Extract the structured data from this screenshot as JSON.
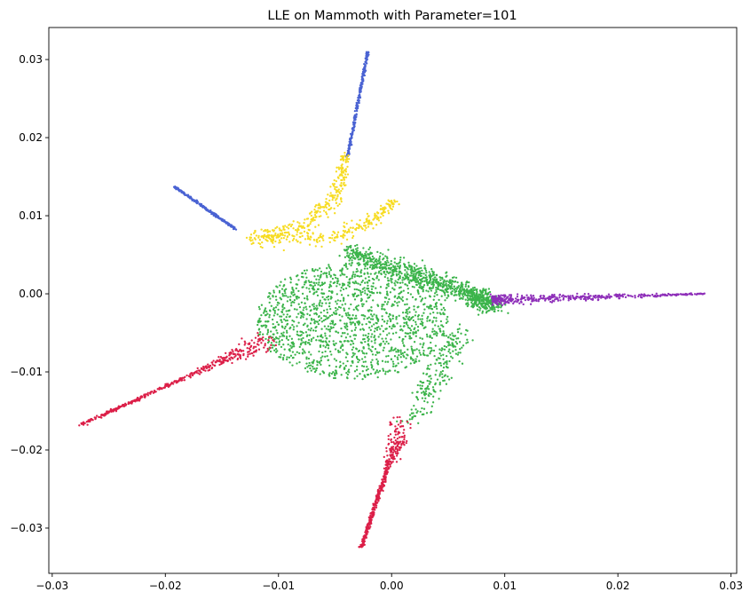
{
  "chart_data": {
    "type": "scatter",
    "title": "LLE on Mammoth with Parameter=101",
    "xlabel": "",
    "ylabel": "",
    "xlim": [
      -0.0303,
      0.0305
    ],
    "ylim": [
      -0.0358,
      0.0341
    ],
    "xticks": [
      -0.03,
      -0.02,
      -0.01,
      0.0,
      0.01,
      0.02,
      0.03
    ],
    "xtick_labels": [
      "−0.03",
      "−0.02",
      "−0.01",
      "0.00",
      "0.01",
      "0.02",
      "0.03"
    ],
    "yticks": [
      -0.03,
      -0.02,
      -0.01,
      0.0,
      0.01,
      0.02,
      0.03
    ],
    "ytick_labels": [
      "−0.03",
      "−0.02",
      "−0.01",
      "0.00",
      "0.01",
      "0.02",
      "0.03"
    ],
    "grid": false,
    "legend": "none",
    "colors": {
      "blue": "#4a63d3",
      "yellow": "#f7dc23",
      "green": "#3cb44b",
      "purple": "#8e2fb9",
      "red": "#dc1f48"
    },
    "series": [
      {
        "color_key": "blue",
        "shape": "arms",
        "segments": [
          [
            [
              -0.0039,
              0.0175
            ],
            [
              -0.0021,
              0.031
            ]
          ],
          [
            [
              -0.0192,
              0.0137
            ],
            [
              -0.0138,
              0.0083
            ]
          ]
        ]
      },
      {
        "color_key": "yellow",
        "shape": "wing",
        "polyline": [
          [
            -0.0041,
            0.0178
          ],
          [
            -0.005,
            0.012
          ],
          [
            -0.008,
            0.0085
          ],
          [
            -0.012,
            0.007
          ],
          [
            -0.006,
            0.007
          ],
          [
            -0.002,
            0.009
          ],
          [
            0.0003,
            0.012
          ]
        ],
        "spread": 0.0018
      },
      {
        "color_key": "green",
        "shape": "body",
        "center": [
          -0.0035,
          -0.0035
        ],
        "radius": [
          0.0085,
          0.0075
        ],
        "ridge": [
          [
            -0.004,
            0.0055
          ],
          [
            0.002,
            0.0025
          ],
          [
            0.007,
            0.0
          ],
          [
            0.009,
            -0.0015
          ]
        ],
        "tail": [
          [
            0.006,
            -0.005
          ],
          [
            0.004,
            -0.01
          ],
          [
            0.002,
            -0.016
          ]
        ]
      },
      {
        "color_key": "purple",
        "shape": "tail",
        "segment": [
          [
            0.009,
            -0.0008
          ],
          [
            0.0277,
            0.0
          ]
        ]
      },
      {
        "color_key": "red",
        "shape": "legs",
        "segments": [
          [
            [
              -0.0275,
              -0.0168
            ],
            [
              -0.011,
              -0.006
            ]
          ],
          [
            [
              -0.0027,
              -0.0325
            ],
            [
              0.001,
              -0.0165
            ]
          ]
        ]
      }
    ]
  }
}
